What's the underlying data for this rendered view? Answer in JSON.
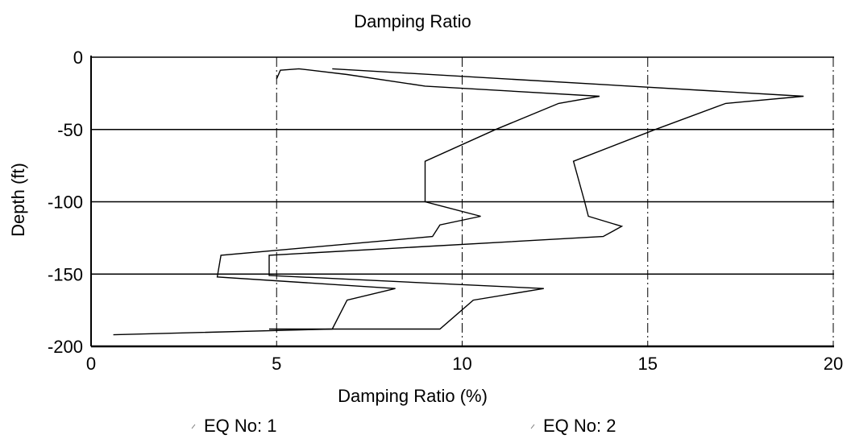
{
  "chart_data": {
    "type": "line",
    "title": "Damping Ratio",
    "xlabel": "Damping Ratio (%)",
    "ylabel": "Depth (ft)",
    "xlim": [
      0,
      20
    ],
    "ylim": [
      -200,
      0
    ],
    "x_ticks": [
      "0",
      "5",
      "10",
      "15",
      "20"
    ],
    "y_ticks": [
      "0",
      "-50",
      "-100",
      "-150",
      "-200"
    ],
    "x_tick_values": [
      0,
      5,
      10,
      15,
      20
    ],
    "y_tick_values": [
      0,
      -50,
      -100,
      -150,
      -200
    ],
    "grid": true,
    "legend_position": "bottom",
    "series": [
      {
        "name": "EQ No: 1",
        "points": [
          [
            5.0,
            -15
          ],
          [
            5.1,
            -9
          ],
          [
            5.6,
            -8
          ],
          [
            6.9,
            -12
          ],
          [
            9.0,
            -20
          ],
          [
            13.7,
            -27
          ],
          [
            12.6,
            -32
          ],
          [
            10.9,
            -50
          ],
          [
            9.0,
            -72
          ],
          [
            9.0,
            -100
          ],
          [
            10.5,
            -110
          ],
          [
            9.4,
            -116
          ],
          [
            9.2,
            -124
          ],
          [
            3.5,
            -137
          ],
          [
            3.4,
            -152
          ],
          [
            8.2,
            -160
          ],
          [
            6.9,
            -168
          ],
          [
            6.5,
            -188
          ],
          [
            0.6,
            -192
          ]
        ]
      },
      {
        "name": "EQ No: 2",
        "points": [
          [
            6.5,
            -8
          ],
          [
            19.2,
            -27
          ],
          [
            17.1,
            -32
          ],
          [
            15.2,
            -50
          ],
          [
            13.0,
            -72
          ],
          [
            13.3,
            -100
          ],
          [
            13.4,
            -110
          ],
          [
            14.3,
            -117
          ],
          [
            13.8,
            -124
          ],
          [
            4.8,
            -137
          ],
          [
            4.8,
            -151
          ],
          [
            12.2,
            -160
          ],
          [
            10.3,
            -168
          ],
          [
            9.4,
            -188
          ],
          [
            4.8,
            -188
          ]
        ]
      }
    ]
  }
}
